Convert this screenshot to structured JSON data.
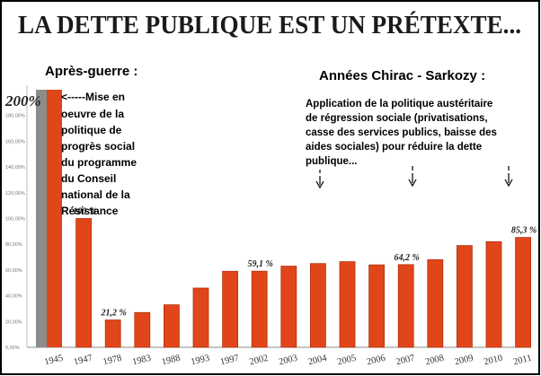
{
  "colors": {
    "bar": "#e0461a",
    "bar_dark": "#b3300c",
    "first_bar": "#8c8c8c",
    "frame": "#000000"
  },
  "chart_data": {
    "type": "bar",
    "title": "LA DETTE PUBLIQUE EST UN PRÉTEXTE...",
    "xlabel": "",
    "ylabel": "",
    "ylim": [
      0,
      200
    ],
    "y_ticks": [
      "0,00%",
      "20,00%",
      "40,00%",
      "60,00%",
      "80,00%",
      "100,00%",
      "120,00%",
      "140,00%",
      "160,00%",
      "180,00%"
    ],
    "categories": [
      "1945",
      "1947",
      "1978",
      "1983",
      "1988",
      "1993",
      "1997",
      "2002",
      "2003",
      "2004",
      "2005",
      "2006",
      "2007",
      "2008",
      "2009",
      "2010",
      "2011"
    ],
    "values": [
      200,
      100,
      21.2,
      27,
      33,
      46,
      59,
      59.1,
      63,
      65,
      66.5,
      64,
      64.2,
      68,
      79,
      82,
      85.3
    ],
    "data_labels": [
      {
        "index": 0,
        "text": "200%"
      },
      {
        "index": 1,
        "text": "100 %"
      },
      {
        "index": 2,
        "text": "21,2 %"
      },
      {
        "index": 7,
        "text": "59,1 %"
      },
      {
        "index": 12,
        "text": "64,2 %"
      },
      {
        "index": 16,
        "text": "85,3 %"
      }
    ],
    "annotations": {
      "left_heading": "Après-guerre :",
      "left_text": [
        "<-----Mise en",
        "oeuvre de la",
        "politique de",
        "progrès social",
        "du programme",
        "du Conseil",
        "national de la",
        "Résistance"
      ],
      "right_heading": "Années Chirac - Sarkozy :",
      "right_text": [
        "Application de la politique austéritaire",
        "de régression sociale (privatisations,",
        "casse des services publics, baisse des",
        "aides sociales) pour réduire la dette",
        "publique..."
      ]
    }
  }
}
